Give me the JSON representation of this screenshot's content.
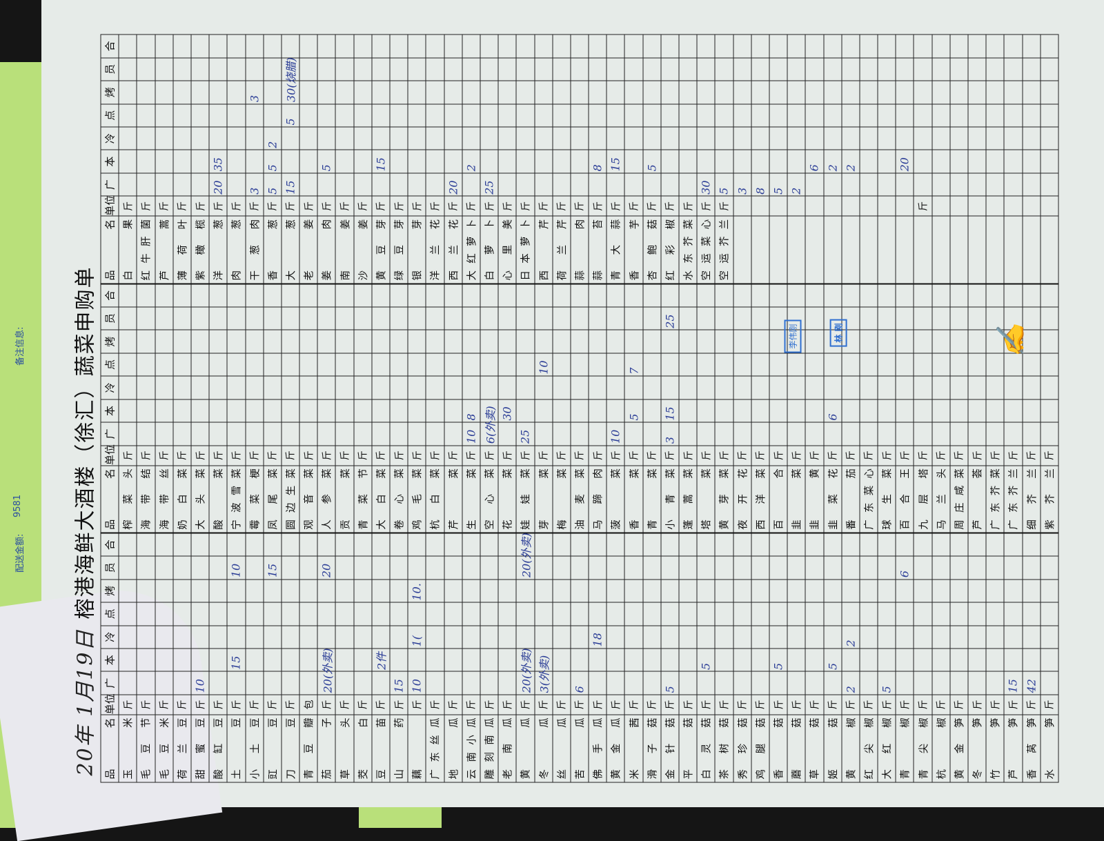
{
  "side_notes": {
    "amount_label": "配送金额:",
    "amount_value": "9581",
    "remark_label": "备注信息:"
  },
  "header": {
    "date": "20年 1月19日",
    "title": "榕港海鲜大酒楼（徐汇）蔬菜申购单"
  },
  "columns": [
    "品名",
    "单位",
    "广",
    "本",
    "冷",
    "点",
    "烤",
    "员",
    "合"
  ],
  "groups": [
    {
      "rows": [
        [
          "玉米",
          "斤"
        ],
        [
          "毛豆节",
          "斤"
        ],
        [
          "毛豆米",
          "斤"
        ],
        [
          "荷兰豆",
          "斤"
        ],
        [
          "甜蜜豆",
          "斤",
          "10"
        ],
        [
          "酸缸豆",
          "斤"
        ],
        [
          "土豆",
          "斤",
          "",
          "15",
          "",
          "",
          "",
          "10"
        ],
        [
          "小土豆",
          "斤"
        ],
        [
          "豇豆",
          "斤",
          "",
          "",
          "",
          "",
          "",
          "15"
        ],
        [
          "刀豆",
          "斤"
        ],
        [
          "青豆瓣",
          "包"
        ],
        [
          "茄子",
          "斤",
          "20(外卖)",
          "",
          "",
          "",
          "",
          "20"
        ],
        [
          "草头",
          "斤"
        ],
        [
          "茭白",
          "斤"
        ],
        [
          "豆苗",
          "斤",
          "",
          "2件"
        ],
        [
          "山药",
          "斤",
          "15"
        ],
        [
          "藕",
          "斤",
          "10",
          "",
          "1(",
          "",
          "10."
        ],
        [
          "广东丝瓜",
          "斤"
        ],
        [
          "地瓜",
          "斤"
        ],
        [
          "云南小瓜",
          "斤"
        ],
        [
          "雕刻南瓜",
          "斤"
        ],
        [
          "老南瓜",
          "斤"
        ],
        [
          "黄瓜",
          "斤",
          "20(外卖)",
          "",
          "",
          "",
          "",
          "20(外卖)"
        ],
        [
          "冬瓜",
          "斤",
          "3(外卖)"
        ],
        [
          "丝瓜",
          "斤"
        ],
        [
          "苦瓜",
          "斤",
          "6"
        ],
        [
          "佛手瓜",
          "斤",
          "",
          "",
          "18"
        ],
        [
          "黄金瓜",
          "斤"
        ],
        [
          "米茜",
          "斤"
        ],
        [
          "滑子菇",
          "斤"
        ],
        [
          "金针菇",
          "斤",
          "5"
        ],
        [
          "平菇",
          "斤"
        ],
        [
          "白灵菇",
          "斤",
          "",
          "5"
        ],
        [
          "茶树菇",
          "斤"
        ],
        [
          "秀珍菇",
          "斤"
        ],
        [
          "鸡腿菇",
          "斤"
        ],
        [
          "香菇",
          "斤",
          "",
          "5"
        ],
        [
          "蘑菇",
          "斤"
        ],
        [
          "草菇",
          "斤"
        ],
        [
          "姬菇",
          "斤",
          "",
          "5"
        ],
        [
          "黄椒",
          "斤",
          "2",
          "",
          "2"
        ],
        [
          "红尖椒",
          "斤"
        ],
        [
          "大红椒",
          "斤",
          "5"
        ],
        [
          "青椒",
          "斤",
          "",
          "",
          "",
          "",
          "",
          "6"
        ],
        [
          "青尖椒",
          "斤"
        ],
        [
          "杭椒",
          "斤"
        ],
        [
          "黄金笋",
          "斤"
        ],
        [
          "冬笋",
          "斤"
        ],
        [
          "竹笋",
          "斤"
        ],
        [
          "芦笋",
          "斤",
          "15"
        ],
        [
          "香莴笋",
          "斤",
          "42"
        ],
        [
          "水笋",
          "斤"
        ]
      ]
    },
    {
      "rows": [
        [
          "榨菜头",
          "斤"
        ],
        [
          "海带结",
          "斤"
        ],
        [
          "海带丝",
          "斤"
        ],
        [
          "奶白菜",
          "斤"
        ],
        [
          "大头菜",
          "斤"
        ],
        [
          "酸菜",
          "斤"
        ],
        [
          "宁波雪菜",
          "斤"
        ],
        [
          "霉菜梗",
          "斤"
        ],
        [
          "凤尾菜",
          "斤"
        ],
        [
          "圆边生菜",
          "斤"
        ],
        [
          "观音菜",
          "斤"
        ],
        [
          "人参菜",
          "斤"
        ],
        [
          "贡菜",
          "斤"
        ],
        [
          "青菜节",
          "斤"
        ],
        [
          "大白菜",
          "斤"
        ],
        [
          "卷心菜",
          "斤"
        ],
        [
          "鸡毛菜",
          "斤"
        ],
        [
          "杭白菜",
          "斤"
        ],
        [
          "芹菜",
          "斤"
        ],
        [
          "生菜",
          "斤",
          "10",
          "8"
        ],
        [
          "空心菜",
          "斤",
          "6(外卖)"
        ],
        [
          "花菜",
          "斤",
          "",
          "30"
        ],
        [
          "娃娃菜",
          "斤",
          "25"
        ],
        [
          "芽菜",
          "斤",
          "",
          "",
          "",
          "10"
        ],
        [
          "梅菜",
          "斤"
        ],
        [
          "油麦菜",
          "斤"
        ],
        [
          "马蹄肉",
          "斤"
        ],
        [
          "菠菜",
          "斤",
          "10"
        ],
        [
          "香菜",
          "斤",
          "",
          "5",
          "",
          "7"
        ],
        [
          "青菜",
          "斤"
        ],
        [
          "小青菜",
          "斤",
          "3",
          "15",
          "",
          "",
          "",
          "25"
        ],
        [
          "蓬蒿菜",
          "斤"
        ],
        [
          "塔菜",
          "斤"
        ],
        [
          "黄芽菜",
          "斤"
        ],
        [
          "夜开花",
          "斤"
        ],
        [
          "西洋菜",
          "斤"
        ],
        [
          "百合",
          "斤"
        ],
        [
          "韭菜",
          "斤"
        ],
        [
          "韭黄",
          "斤"
        ],
        [
          "韭菜花",
          "斤",
          "",
          "6"
        ],
        [
          "番茄",
          "斤"
        ],
        [
          "广东菜心",
          "斤"
        ],
        [
          "球生菜",
          "斤"
        ],
        [
          "百合王",
          "斤"
        ],
        [
          "九层塔",
          "斤"
        ],
        [
          "马兰头",
          "斤"
        ],
        [
          "周庄咸菜",
          "斤"
        ],
        [
          "芦荟",
          "斤"
        ],
        [
          "广东芥菜",
          "斤"
        ],
        [
          "广东芥兰",
          "斤"
        ],
        [
          "细芥兰",
          "斤"
        ],
        [
          "紫芥兰",
          "斤"
        ]
      ]
    },
    {
      "rows": [
        [
          "白果",
          "斤"
        ],
        [
          "红牛肝菌",
          "斤"
        ],
        [
          "芦蒿",
          "斤"
        ],
        [
          "薄荷叶",
          "斤"
        ],
        [
          "紫橄榄",
          "斤"
        ],
        [
          "洋葱",
          "斤",
          "20",
          "35"
        ],
        [
          "肉葱",
          "斤"
        ],
        [
          "干葱肉",
          "斤",
          "3",
          "",
          "",
          "",
          "3"
        ],
        [
          "香葱",
          "斤",
          "5",
          "5",
          "2"
        ],
        [
          "大葱",
          "斤",
          "15",
          "",
          "",
          "5",
          "30(烧腊)"
        ],
        [
          "老姜",
          "斤"
        ],
        [
          "姜肉",
          "斤",
          "",
          "5"
        ],
        [
          "南姜",
          "斤"
        ],
        [
          "沙姜",
          "斤"
        ],
        [
          "黄豆芽",
          "斤",
          "",
          "15"
        ],
        [
          "绿豆芽",
          "斤"
        ],
        [
          "银芽",
          "斤"
        ],
        [
          "洋兰花",
          "斤"
        ],
        [
          "西兰花",
          "斤",
          "20"
        ],
        [
          "大红萝卜",
          "斤",
          "",
          "2"
        ],
        [
          "白萝卜",
          "斤",
          "25"
        ],
        [
          "心里美",
          "斤"
        ],
        [
          "日本萝卜",
          "斤"
        ],
        [
          "西芹",
          "斤"
        ],
        [
          "荷兰芹",
          "斤"
        ],
        [
          "蒜肉",
          "斤"
        ],
        [
          "蒜苔",
          "斤",
          "",
          "8"
        ],
        [
          "青大蒜",
          "斤",
          "",
          "15"
        ],
        [
          "香芋",
          "斤"
        ],
        [
          "杏鲍菇",
          "斤",
          "",
          "5"
        ],
        [
          "红彩椒",
          "斤"
        ],
        [
          "水东芥菜",
          "斤"
        ],
        [
          "空运菜心",
          "斤",
          "30"
        ],
        [
          "空运芥兰",
          "斤",
          "5"
        ],
        [
          "",
          "",
          "3"
        ],
        [
          "",
          "",
          "8"
        ],
        [
          "",
          "",
          "5"
        ],
        [
          "",
          "",
          "2"
        ],
        [
          "",
          "",
          "",
          "6"
        ],
        [
          "",
          "",
          "",
          "2"
        ],
        [
          "",
          "",
          "",
          "2"
        ],
        [
          "",
          ""
        ],
        [
          "",
          ""
        ],
        [
          "",
          "",
          "",
          "20"
        ],
        [
          "",
          "斤"
        ],
        [
          "",
          ""
        ],
        [
          "",
          ""
        ],
        [
          "",
          ""
        ],
        [
          "",
          ""
        ],
        [
          "",
          ""
        ],
        [
          "",
          ""
        ],
        [
          "",
          ""
        ]
      ]
    }
  ],
  "stamps": [
    "李伟刚",
    "林 刚"
  ],
  "colors": {
    "ink": "#2b3d96",
    "stamp": "#2f6fd0",
    "paper": "#e6ebe8"
  }
}
